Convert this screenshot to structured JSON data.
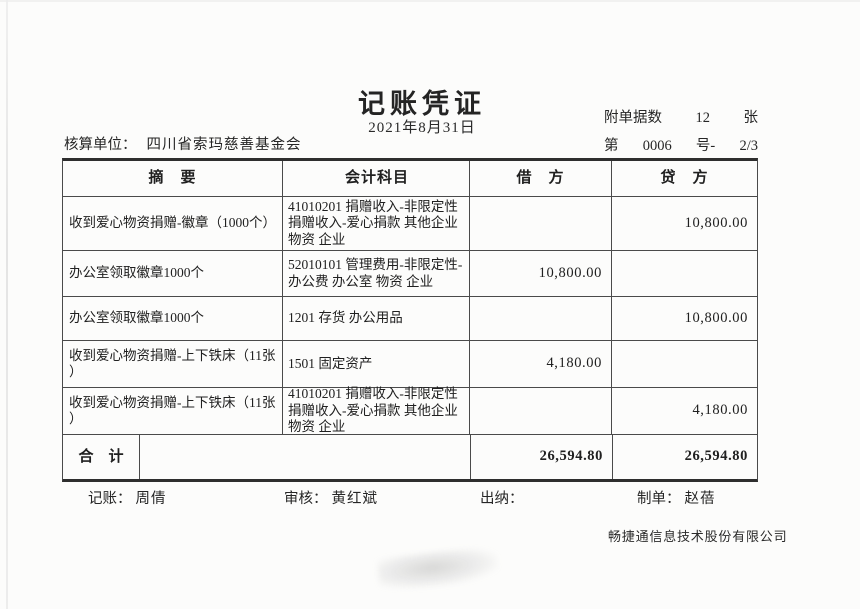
{
  "header": {
    "title": "记账凭证",
    "date": "2021年8月31日",
    "attach": {
      "label": "附单据数",
      "count": "12",
      "unit": "张"
    },
    "number": {
      "prefix": "第",
      "value": "0006",
      "suffix": "号-",
      "page": "2/3"
    },
    "unit": {
      "label": "核算单位：",
      "name": "四川省索玛慈善基金会"
    }
  },
  "table": {
    "headers": {
      "summary": "摘　要",
      "account": "会计科目",
      "debit": "借　方",
      "credit": "贷　方"
    },
    "rows": [
      {
        "summary": "收到爱心物资捐赠-徽章（1000个）",
        "account": "41010201 捐赠收入-非限定性\n捐赠收入-爱心捐款 其他企业\n物资 企业",
        "debit": "",
        "credit": "10,800.00"
      },
      {
        "summary": "办公室领取徽章1000个",
        "account": "52010101 管理费用-非限定性-\n办公费 办公室 物资 企业",
        "debit": "10,800.00",
        "credit": ""
      },
      {
        "summary": "办公室领取徽章1000个",
        "account": "1201 存货 办公用品",
        "debit": "",
        "credit": "10,800.00"
      },
      {
        "summary": "收到爱心物资捐赠-上下铁床（11张\n）",
        "account": "1501 固定资产",
        "debit": "4,180.00",
        "credit": ""
      },
      {
        "summary": "收到爱心物资捐赠-上下铁床（11张\n）",
        "account": "41010201 捐赠收入-非限定性\n捐赠收入-爱心捐款 其他企业\n物资 企业",
        "debit": "",
        "credit": "4,180.00"
      }
    ],
    "total": {
      "label": "合　计",
      "debit": "26,594.80",
      "credit": "26,594.80"
    }
  },
  "signatures": {
    "bookkeeping": {
      "label": "记账：",
      "name": "周倩"
    },
    "review": {
      "label": "审核：",
      "name": "黄红斌"
    },
    "cashier": {
      "label": "出纳：",
      "name": ""
    },
    "preparer": {
      "label": "制单：",
      "name": "赵蓓"
    }
  },
  "vendor": "畅捷通信息技术股份有限公司"
}
